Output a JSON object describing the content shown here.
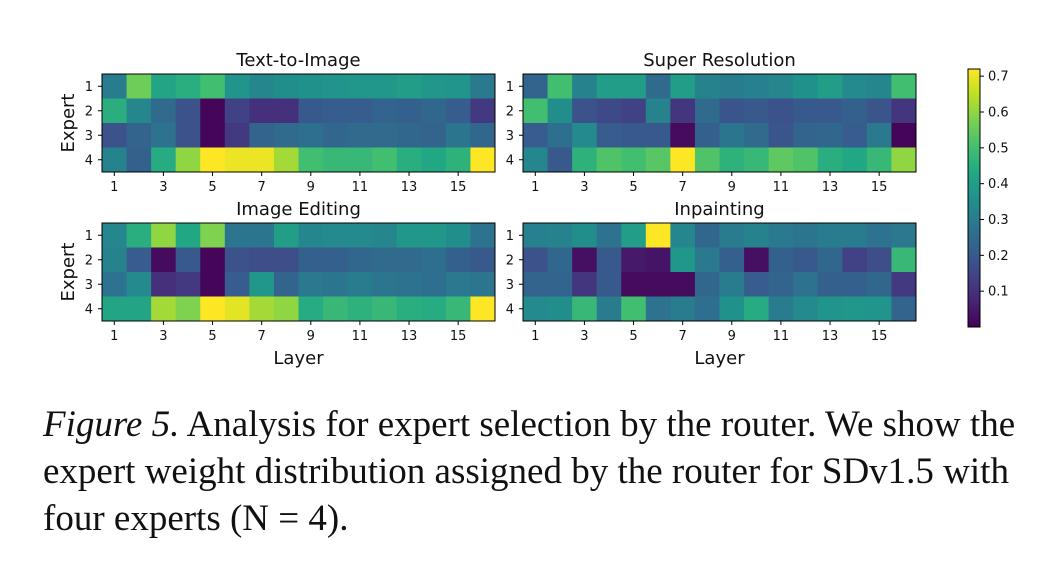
{
  "caption": {
    "label": "Figure 5.",
    "text": "Analysis for expert selection by the router. We show the expert weight distribution assigned by the router for SDv1.5 with four experts (N = 4)."
  },
  "colorbar": {
    "colormap": "viridis",
    "range": [
      0.0,
      0.72
    ],
    "ticks": [
      0.1,
      0.2,
      0.3,
      0.4,
      0.5,
      0.6,
      0.7
    ],
    "tick_labels": [
      "0.1",
      "0.2",
      "0.3",
      "0.4",
      "0.5",
      "0.6",
      "0.7"
    ]
  },
  "chart_data": [
    {
      "type": "heatmap",
      "title": "Text-to-Image",
      "ylabel": "Expert",
      "xlabel": "",
      "y_categories": [
        "1",
        "2",
        "3",
        "4"
      ],
      "x_ticks": [
        1,
        3,
        5,
        7,
        9,
        11,
        13,
        15
      ],
      "values": [
        [
          0.3,
          0.56,
          0.42,
          0.45,
          0.5,
          0.37,
          0.33,
          0.35,
          0.36,
          0.37,
          0.38,
          0.38,
          0.4,
          0.38,
          0.37,
          0.29
        ],
        [
          0.45,
          0.33,
          0.25,
          0.18,
          0.01,
          0.14,
          0.1,
          0.1,
          0.2,
          0.21,
          0.21,
          0.23,
          0.22,
          0.24,
          0.21,
          0.12
        ],
        [
          0.18,
          0.23,
          0.27,
          0.18,
          0.01,
          0.12,
          0.23,
          0.25,
          0.26,
          0.24,
          0.25,
          0.25,
          0.24,
          0.23,
          0.28,
          0.24
        ],
        [
          0.32,
          0.22,
          0.44,
          0.6,
          0.72,
          0.7,
          0.7,
          0.62,
          0.5,
          0.48,
          0.48,
          0.5,
          0.45,
          0.43,
          0.46,
          0.72
        ]
      ]
    },
    {
      "type": "heatmap",
      "title": "Super Resolution",
      "ylabel": "",
      "xlabel": "",
      "y_categories": [
        "1",
        "2",
        "3",
        "4"
      ],
      "x_ticks": [
        1,
        3,
        5,
        7,
        9,
        11,
        13,
        15
      ],
      "values": [
        [
          0.23,
          0.5,
          0.32,
          0.4,
          0.4,
          0.25,
          0.4,
          0.32,
          0.3,
          0.31,
          0.33,
          0.36,
          0.4,
          0.34,
          0.33,
          0.5
        ],
        [
          0.5,
          0.35,
          0.18,
          0.16,
          0.14,
          0.32,
          0.11,
          0.25,
          0.19,
          0.2,
          0.18,
          0.2,
          0.2,
          0.22,
          0.19,
          0.11
        ],
        [
          0.21,
          0.26,
          0.34,
          0.21,
          0.2,
          0.2,
          0.02,
          0.22,
          0.28,
          0.25,
          0.19,
          0.23,
          0.24,
          0.21,
          0.29,
          0.01
        ],
        [
          0.33,
          0.2,
          0.46,
          0.52,
          0.5,
          0.53,
          0.72,
          0.52,
          0.46,
          0.48,
          0.54,
          0.52,
          0.45,
          0.43,
          0.48,
          0.6
        ]
      ]
    },
    {
      "type": "heatmap",
      "title": "Image Editing",
      "ylabel": "Expert",
      "xlabel": "Layer",
      "y_categories": [
        "1",
        "2",
        "3",
        "4"
      ],
      "x_ticks": [
        1,
        3,
        5,
        7,
        9,
        11,
        13,
        15
      ],
      "values": [
        [
          0.33,
          0.45,
          0.6,
          0.43,
          0.58,
          0.28,
          0.28,
          0.4,
          0.33,
          0.34,
          0.34,
          0.33,
          0.38,
          0.38,
          0.35,
          0.27
        ],
        [
          0.32,
          0.21,
          0.02,
          0.2,
          0.01,
          0.18,
          0.17,
          0.17,
          0.22,
          0.22,
          0.24,
          0.25,
          0.25,
          0.26,
          0.22,
          0.2
        ],
        [
          0.27,
          0.34,
          0.1,
          0.12,
          0.01,
          0.21,
          0.38,
          0.23,
          0.29,
          0.28,
          0.3,
          0.28,
          0.27,
          0.26,
          0.29,
          0.28
        ],
        [
          0.42,
          0.42,
          0.62,
          0.58,
          0.72,
          0.69,
          0.62,
          0.6,
          0.44,
          0.48,
          0.46,
          0.48,
          0.45,
          0.44,
          0.48,
          0.72
        ]
      ]
    },
    {
      "type": "heatmap",
      "title": "Inpainting",
      "ylabel": "",
      "xlabel": "Layer",
      "y_categories": [
        "1",
        "2",
        "3",
        "4"
      ],
      "x_ticks": [
        1,
        3,
        5,
        7,
        9,
        11,
        13,
        15
      ],
      "values": [
        [
          0.31,
          0.32,
          0.35,
          0.27,
          0.4,
          0.72,
          0.33,
          0.24,
          0.3,
          0.32,
          0.29,
          0.28,
          0.3,
          0.3,
          0.27,
          0.29
        ],
        [
          0.18,
          0.24,
          0.03,
          0.2,
          0.05,
          0.04,
          0.38,
          0.29,
          0.22,
          0.03,
          0.22,
          0.2,
          0.24,
          0.14,
          0.17,
          0.48
        ],
        [
          0.23,
          0.23,
          0.11,
          0.2,
          0.02,
          0.02,
          0.02,
          0.24,
          0.3,
          0.21,
          0.23,
          0.27,
          0.22,
          0.22,
          0.24,
          0.12
        ],
        [
          0.34,
          0.35,
          0.48,
          0.3,
          0.5,
          0.27,
          0.3,
          0.26,
          0.36,
          0.44,
          0.3,
          0.34,
          0.37,
          0.38,
          0.37,
          0.23
        ]
      ]
    }
  ]
}
